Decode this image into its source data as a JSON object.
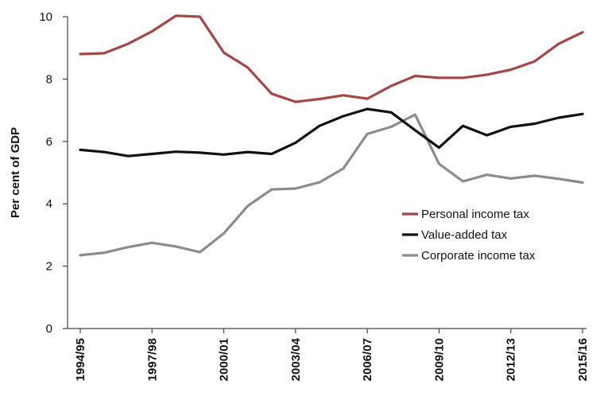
{
  "chart_data": {
    "type": "line",
    "title": "",
    "xlabel": "",
    "ylabel": "Per cent of GDP",
    "ylim": [
      0,
      10
    ],
    "yticks": [
      "0",
      "2",
      "4",
      "6",
      "8",
      "10"
    ],
    "x": [
      "1994/95",
      "1995/96",
      "1996/97",
      "1997/98",
      "1998/99",
      "1999/00",
      "2000/01",
      "2001/02",
      "2002/03",
      "2003/04",
      "2004/05",
      "2005/06",
      "2006/07",
      "2007/08",
      "2008/09",
      "2009/10",
      "2010/11",
      "2011/12",
      "2012/13",
      "2013/14",
      "2014/15",
      "2015/16"
    ],
    "xtick_labels": [
      "1994/95",
      "1997/98",
      "2000/01",
      "2003/04",
      "2006/07",
      "2009/10",
      "2012/13",
      "2015/16"
    ],
    "series": [
      {
        "name": "Personal income tax",
        "color": "#A84545",
        "values": [
          8.8,
          8.83,
          9.13,
          9.53,
          10.03,
          10.0,
          8.85,
          8.37,
          7.53,
          7.27,
          7.36,
          7.48,
          7.37,
          7.78,
          8.1,
          8.04,
          8.04,
          8.14,
          8.3,
          8.57,
          9.13,
          9.5
        ]
      },
      {
        "name": "Value-added tax",
        "color": "#111111",
        "values": [
          5.73,
          5.66,
          5.53,
          5.6,
          5.67,
          5.64,
          5.58,
          5.66,
          5.6,
          5.96,
          6.5,
          6.81,
          7.04,
          6.93,
          6.36,
          5.8,
          6.5,
          6.2,
          6.47,
          6.57,
          6.76,
          6.88
        ]
      },
      {
        "name": "Corporate income tax",
        "color": "#8C8C8C",
        "values": [
          2.35,
          2.43,
          2.61,
          2.75,
          2.63,
          2.45,
          3.05,
          3.93,
          4.46,
          4.49,
          4.69,
          5.13,
          6.24,
          6.47,
          6.86,
          5.28,
          4.72,
          4.93,
          4.81,
          4.9,
          4.8,
          4.68
        ]
      }
    ],
    "legend_position": "right"
  }
}
